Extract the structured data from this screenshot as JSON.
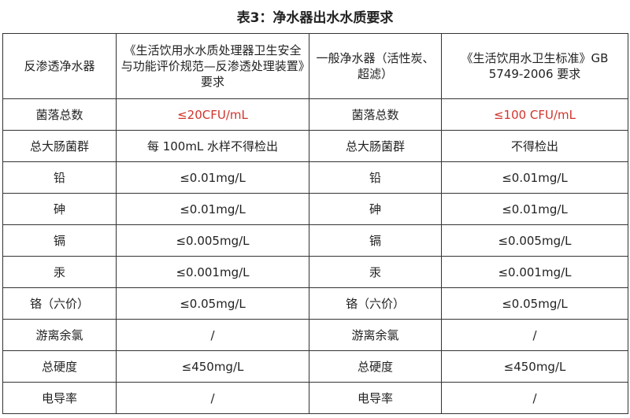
{
  "title": "表3：净水器出水水质要求",
  "headers": [
    "反渗透净水器",
    "《生活饮用水水质处理器卫生安全与功能评价规范—反渗透处理装置》要求",
    "一般净水器（活性炭、超滤）",
    "《生活饮用水卫生标准》GB 5749-2006 要求"
  ],
  "rows": [
    [
      "菌落总数",
      "≤20CFU/mL",
      "菌落总数",
      "≤100 CFU/mL"
    ],
    [
      "总大肠菌群",
      "每 100mL 水样不得检出",
      "总大肠菌群",
      "不得检出"
    ],
    [
      "铅",
      "≤0.01mg/L",
      "铅",
      "≤0.01mg/L"
    ],
    [
      "砷",
      "≤0.01mg/L",
      "砷",
      "≤0.01mg/L"
    ],
    [
      "镉",
      "≤0.005mg/L",
      "镉",
      "≤0.005mg/L"
    ],
    [
      "汞",
      "≤0.001mg/L",
      "汞",
      "≤0.001mg/L"
    ],
    [
      "铬（六价）",
      "≤0.05mg/L",
      "铬（六价）",
      "≤0.05mg/L"
    ],
    [
      "游离余氯",
      "/",
      "游离余氯",
      "/"
    ],
    [
      "总硬度",
      "≤450mg/L",
      "总硬度",
      "≤450mg/L"
    ],
    [
      "电导率",
      "/",
      "电导率",
      "/"
    ]
  ],
  "colors": {
    "highlight": "#d0342c"
  }
}
